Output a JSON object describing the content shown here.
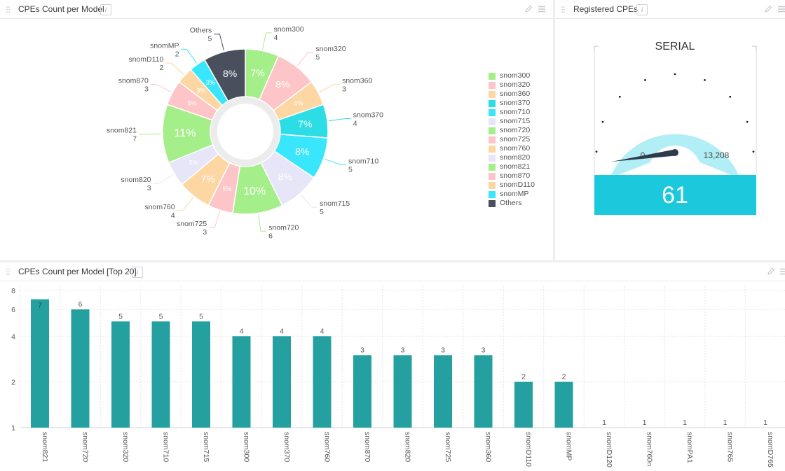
{
  "pie_panel": {
    "title": "CPEs Count per Model"
  },
  "gauge_panel": {
    "title": "Registered CPEs",
    "gauge_title": "SERIAL",
    "min_label": "0",
    "max_label": "13,208",
    "value_label": "61",
    "gauge_value": 61,
    "gauge_max": 13208
  },
  "bar_panel": {
    "title": "CPEs Count per Model [Top 20]"
  },
  "colors": {
    "snom300": "#a5ef8a",
    "snom320": "#fdc5c7",
    "snom360": "#fdd7a3",
    "snom370": "#2ddde5",
    "snom710": "#3ae6fc",
    "snom715": "#e6e6f8",
    "snom720": "#a5ef8a",
    "snom725": "#fdc5c7",
    "snom760": "#fdd7a3",
    "snom820": "#e6e6f8",
    "snom821": "#a5ef8a",
    "snom870": "#fdc5c7",
    "snomD110": "#fdd7a3",
    "snomMP": "#3ae6fc",
    "Others": "#4a4f5e",
    "bar": "#24a0a0",
    "gauge_arc": "#b1eef5",
    "gauge_box": "#1cc8dc"
  },
  "chart_data": [
    {
      "type": "pie",
      "title": "CPEs Count per Model",
      "slices": [
        {
          "label": "snom300",
          "value": 4,
          "pct_label": "7%"
        },
        {
          "label": "snom320",
          "value": 5,
          "pct_label": "8%"
        },
        {
          "label": "snom360",
          "value": 3,
          "pct_label": "5%"
        },
        {
          "label": "snom370",
          "value": 4,
          "pct_label": "7%"
        },
        {
          "label": "snom710",
          "value": 5,
          "pct_label": "8%"
        },
        {
          "label": "snom715",
          "value": 5,
          "pct_label": "8%"
        },
        {
          "label": "snom720",
          "value": 6,
          "pct_label": "10%"
        },
        {
          "label": "snom725",
          "value": 3,
          "pct_label": "5%"
        },
        {
          "label": "snom760",
          "value": 4,
          "pct_label": "7%"
        },
        {
          "label": "snom820",
          "value": 3,
          "pct_label": "5%"
        },
        {
          "label": "snom821",
          "value": 7,
          "pct_label": "11%"
        },
        {
          "label": "snom870",
          "value": 3,
          "pct_label": "5%"
        },
        {
          "label": "snomD110",
          "value": 2,
          "pct_label": "3%"
        },
        {
          "label": "snomMP",
          "value": 2,
          "pct_label": "3%"
        },
        {
          "label": "Others",
          "value": 5,
          "pct_label": "8%"
        }
      ],
      "legend": [
        "snom300",
        "snom320",
        "snom360",
        "snom370",
        "snom710",
        "snom715",
        "snom720",
        "snom725",
        "snom760",
        "snom820",
        "snom821",
        "snom870",
        "snomD110",
        "snomMP",
        "Others"
      ],
      "legend_position": "right"
    },
    {
      "type": "bar",
      "title": "CPEs Count per Model [Top 20]",
      "scale": "log",
      "yticks": [
        1,
        2,
        4,
        6,
        8
      ],
      "ylim": [
        1,
        8
      ],
      "categories": [
        "snom821",
        "snom720",
        "snom320",
        "snom710",
        "snom715",
        "snom300",
        "snom370",
        "snom760",
        "snom870",
        "snom820",
        "snom725",
        "snom360",
        "snomD110",
        "snomMP",
        "snomD120",
        "snom760n",
        "snomPA1",
        "snom765",
        "snomD765"
      ],
      "values": [
        7,
        6,
        5,
        5,
        5,
        4,
        4,
        4,
        3,
        3,
        3,
        3,
        2,
        2,
        1,
        1,
        1,
        1,
        1
      ],
      "grid": true
    }
  ]
}
